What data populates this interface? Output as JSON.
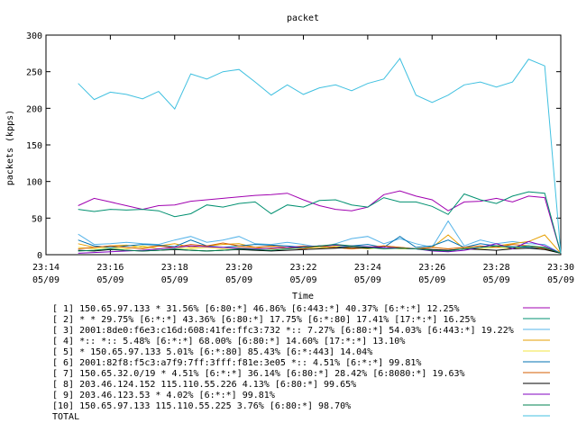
{
  "chart_data": {
    "type": "line",
    "title": "packet",
    "xlabel": "Time",
    "ylabel": "packets (kpps)",
    "ylim": [
      0,
      300
    ],
    "xlim": [
      "23:14",
      "23:30"
    ],
    "y_ticks": [
      0,
      50,
      100,
      150,
      200,
      250,
      300
    ],
    "x_ticks": [
      {
        "time": "23:14",
        "date": "05/09"
      },
      {
        "time": "23:16",
        "date": "05/09"
      },
      {
        "time": "23:18",
        "date": "05/09"
      },
      {
        "time": "23:20",
        "date": "05/09"
      },
      {
        "time": "23:22",
        "date": "05/09"
      },
      {
        "time": "23:24",
        "date": "05/09"
      },
      {
        "time": "23:26",
        "date": "05/09"
      },
      {
        "time": "23:28",
        "date": "05/09"
      },
      {
        "time": "23:30",
        "date": "05/09"
      }
    ],
    "grid": false,
    "legend_position": "bottom",
    "x": [
      "23:15:00",
      "23:15:30",
      "23:16:00",
      "23:16:30",
      "23:17:00",
      "23:17:30",
      "23:18:00",
      "23:18:30",
      "23:19:00",
      "23:19:30",
      "23:20:00",
      "23:20:30",
      "23:21:00",
      "23:21:30",
      "23:22:00",
      "23:22:30",
      "23:23:00",
      "23:23:30",
      "23:24:00",
      "23:24:30",
      "23:25:00",
      "23:25:30",
      "23:26:00",
      "23:26:30",
      "23:27:00",
      "23:27:30",
      "23:28:00",
      "23:28:30",
      "23:29:00",
      "23:29:30",
      "23:30:00"
    ],
    "series": [
      {
        "name": "[ 1] 150.65.97.133 * 31.56%  [6:80:*] 46.86% [6:443:*] 40.37% [6:*:*] 12.25%",
        "color": "#a000b0",
        "values": [
          67,
          77,
          72,
          67,
          62,
          67,
          68,
          73,
          75,
          77,
          79,
          81,
          82,
          84,
          75,
          67,
          62,
          60,
          65,
          82,
          87,
          80,
          75,
          60,
          72,
          73,
          77,
          72,
          80,
          78,
          2
        ]
      },
      {
        "name": "[ 2] * * 29.75%  [6:*:*] 43.36% [6:80:*] 17.75% [6:*:80] 17.41% [17:*:*] 16.25%",
        "color": "#009070",
        "values": [
          62,
          59,
          62,
          61,
          62,
          60,
          52,
          56,
          68,
          65,
          70,
          72,
          56,
          68,
          65,
          74,
          75,
          68,
          65,
          78,
          72,
          72,
          66,
          55,
          83,
          75,
          70,
          80,
          86,
          84,
          2
        ]
      },
      {
        "name": "[ 3] 2001:8de0:f6e3:c16d:608:41fe:ffc3:732 *:: 7.27%  [6:80:*] 54.03% [6:443:*] 19.22%",
        "color": "#56b4e9",
        "values": [
          28,
          14,
          15,
          17,
          15,
          14,
          20,
          25,
          17,
          20,
          25,
          15,
          14,
          17,
          14,
          10,
          15,
          22,
          25,
          15,
          22,
          15,
          10,
          46,
          12,
          20,
          15,
          18,
          15,
          14,
          2
        ]
      },
      {
        "name": "[ 4] *:: *:: 5.48%  [6:*:*] 68.00% [6:80:*] 14.60% [17:*:*] 13.10%",
        "color": "#e69f00",
        "values": [
          15,
          10,
          12,
          13,
          10,
          12,
          15,
          10,
          12,
          14,
          15,
          10,
          8,
          10,
          12,
          10,
          10,
          8,
          10,
          12,
          10,
          8,
          10,
          27,
          8,
          10,
          12,
          15,
          18,
          27,
          2
        ]
      },
      {
        "name": "[ 5] * 150.65.97.133 5.01%  [6:*:80] 85.43% [6:*:443] 14.04%",
        "color": "#f0e442",
        "values": [
          10,
          8,
          10,
          8,
          12,
          8,
          10,
          8,
          10,
          8,
          10,
          8,
          10,
          8,
          10,
          8,
          12,
          10,
          8,
          10,
          8,
          8,
          10,
          8,
          10,
          8,
          10,
          8,
          12,
          10,
          2
        ]
      },
      {
        "name": "[ 6] 2001:82f8:f5c3:a7f9:7ff:3fff:f81e:3e05 *:: 4.51%  [6:*:*] 99.81%",
        "color": "#0072b2",
        "values": [
          20,
          12,
          10,
          12,
          14,
          13,
          11,
          20,
          12,
          10,
          12,
          14,
          13,
          12,
          10,
          12,
          10,
          12,
          14,
          10,
          25,
          10,
          12,
          20,
          10,
          15,
          12,
          11,
          10,
          9,
          2
        ]
      },
      {
        "name": "[ 7] 150.65.32.0/19 * 4.51%  [6:*:*] 36.14% [6:80:*] 28.42% [6:8080:*] 19.63%",
        "color": "#d55e00",
        "values": [
          8,
          10,
          12,
          10,
          8,
          12,
          10,
          14,
          12,
          16,
          12,
          10,
          12,
          10,
          8,
          12,
          10,
          8,
          10,
          12,
          10,
          8,
          10,
          8,
          10,
          12,
          10,
          14,
          12,
          8,
          2
        ]
      },
      {
        "name": "[ 8] 203.46.124.152 115.110.55.226 4.13%  [6:80:*] 99.65%",
        "color": "#000000",
        "values": [
          6,
          5,
          7,
          6,
          5,
          6,
          7,
          6,
          5,
          6,
          7,
          6,
          5,
          6,
          7,
          8,
          9,
          10,
          9,
          10,
          9,
          8,
          7,
          6,
          8,
          7,
          6,
          8,
          9,
          7,
          2
        ]
      },
      {
        "name": "[ 9] 203.46.123.53 * 4.02%  [6:*:*] 99.81%",
        "color": "#8000c0",
        "values": [
          2,
          3,
          4,
          5,
          6,
          8,
          10,
          12,
          11,
          10,
          9,
          8,
          9,
          10,
          11,
          12,
          13,
          12,
          11,
          10,
          9,
          8,
          5,
          4,
          6,
          10,
          15,
          8,
          18,
          12,
          2
        ]
      },
      {
        "name": "[10] 150.65.97.133 115.110.55.225 3.76%  [6:80:*] 98.70%",
        "color": "#008050",
        "values": [
          5,
          6,
          8,
          6,
          5,
          6,
          8,
          6,
          5,
          6,
          8,
          7,
          6,
          8,
          10,
          12,
          14,
          12,
          10,
          8,
          9,
          8,
          6,
          5,
          8,
          10,
          12,
          10,
          12,
          10,
          2
        ]
      },
      {
        "name": "TOTAL",
        "color": "#40c0e0",
        "values": [
          234,
          212,
          222,
          219,
          213,
          223,
          199,
          247,
          240,
          250,
          253,
          236,
          218,
          232,
          219,
          228,
          232,
          224,
          234,
          240,
          268,
          218,
          208,
          218,
          232,
          236,
          229,
          236,
          267,
          258,
          2
        ]
      }
    ]
  }
}
